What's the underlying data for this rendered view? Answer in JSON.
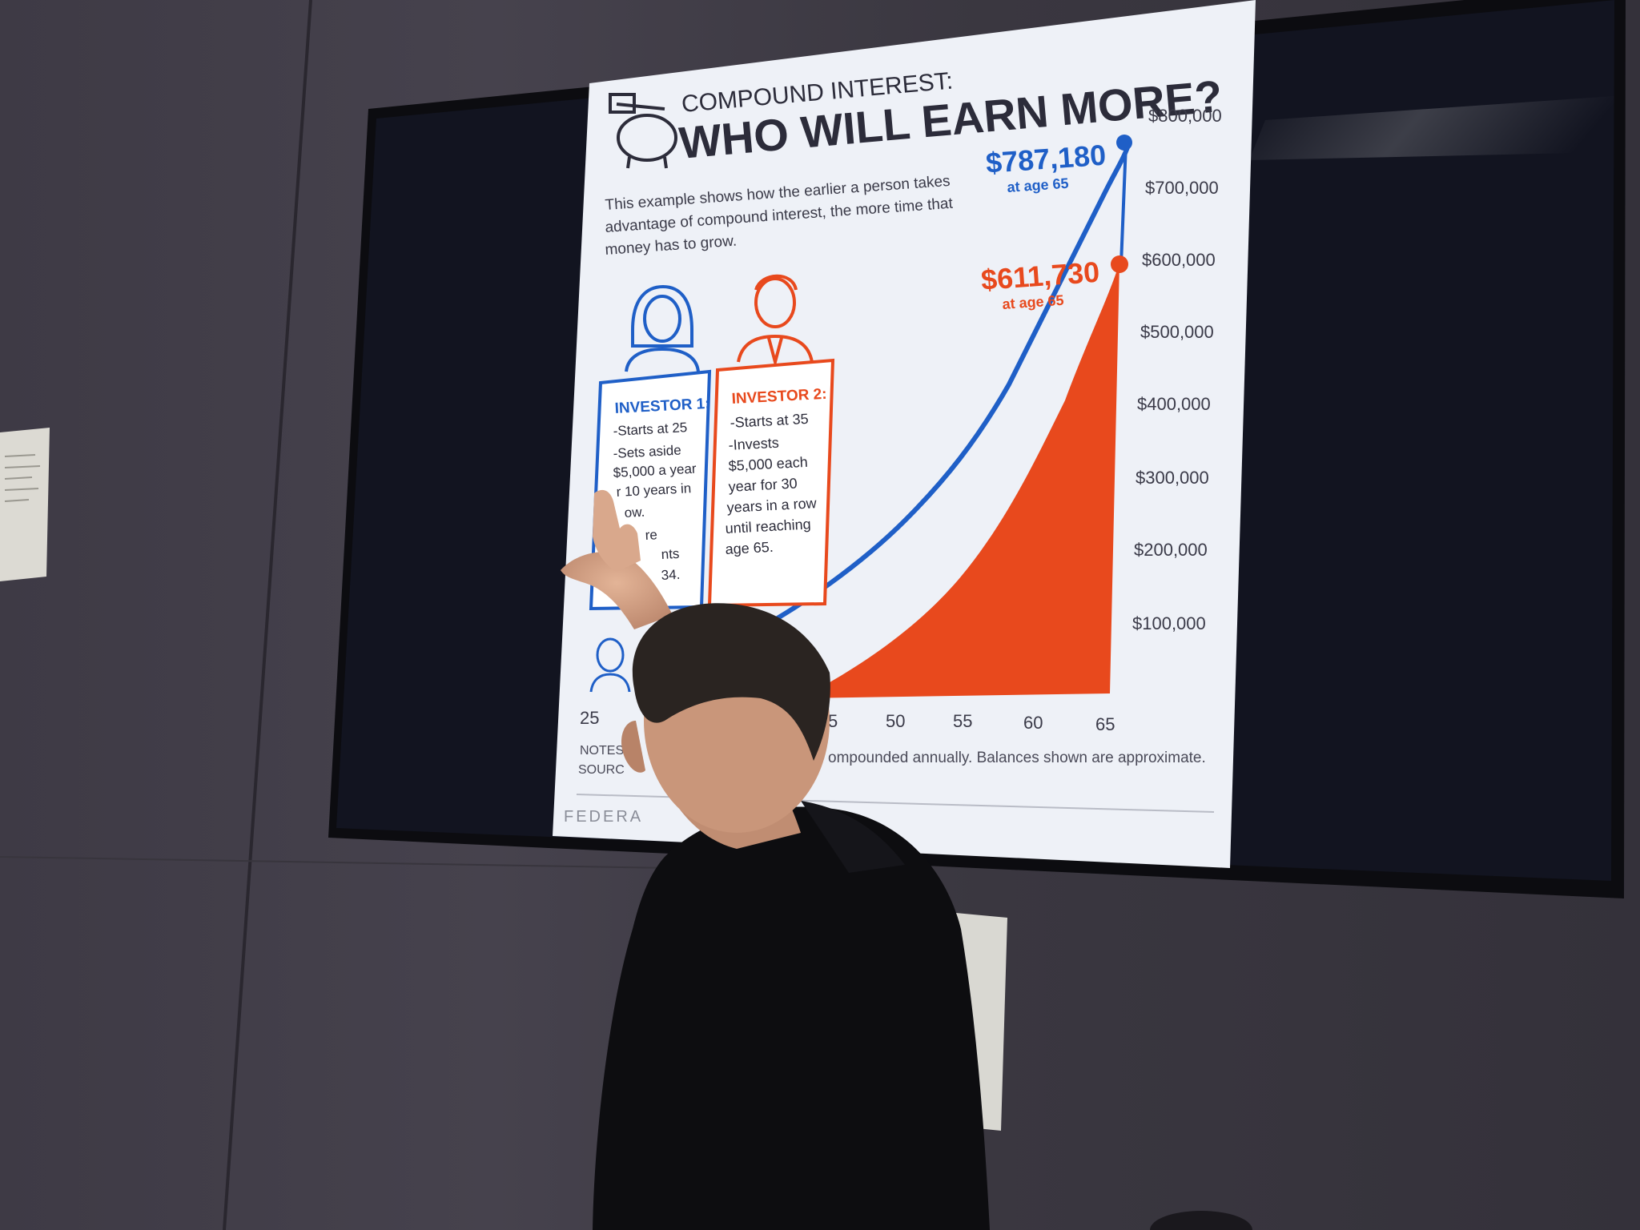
{
  "slide": {
    "kicker": "COMPOUND INTEREST:",
    "title": "WHO WILL EARN MORE?",
    "intro": [
      "This example shows how the earlier a person takes",
      "advantage of compound interest, the more time that",
      "money has to grow."
    ],
    "investor1": {
      "heading": "INVESTOR 1:",
      "lines": [
        "-Starts at 25",
        "-Sets aside",
        "$5,000 a year",
        "r 10 years in",
        "ow.",
        "re",
        "nts",
        "34."
      ]
    },
    "investor2": {
      "heading": "INVESTOR 2:",
      "lines": [
        "-Starts at 35",
        "-Invests",
        "$5,000 each",
        "year for 30",
        "years in a row",
        "until reaching",
        "age 65."
      ]
    },
    "callout1": {
      "value": "$787,180",
      "sub": "at age 65"
    },
    "callout2": {
      "value": "$611,730",
      "sub": "at age 65"
    },
    "y_ticks": [
      "$800,000",
      "$700,000",
      "$600,000",
      "$500,000",
      "$400,000",
      "$300,000",
      "$200,000",
      "$100,000"
    ],
    "x_ticks": [
      "25",
      "5",
      "50",
      "55",
      "60",
      "65"
    ],
    "notes_label": "NOTES:",
    "source_label": "SOURC",
    "notes_text": "ompounded annually. Balances shown are approximate.",
    "footer": "FEDERA"
  },
  "colors": {
    "blue": "#1f5fc7",
    "orange": "#e8491d",
    "navy_text": "#2c2c3a",
    "wall": "#413d48",
    "screen_bg": "#eef1f7"
  }
}
